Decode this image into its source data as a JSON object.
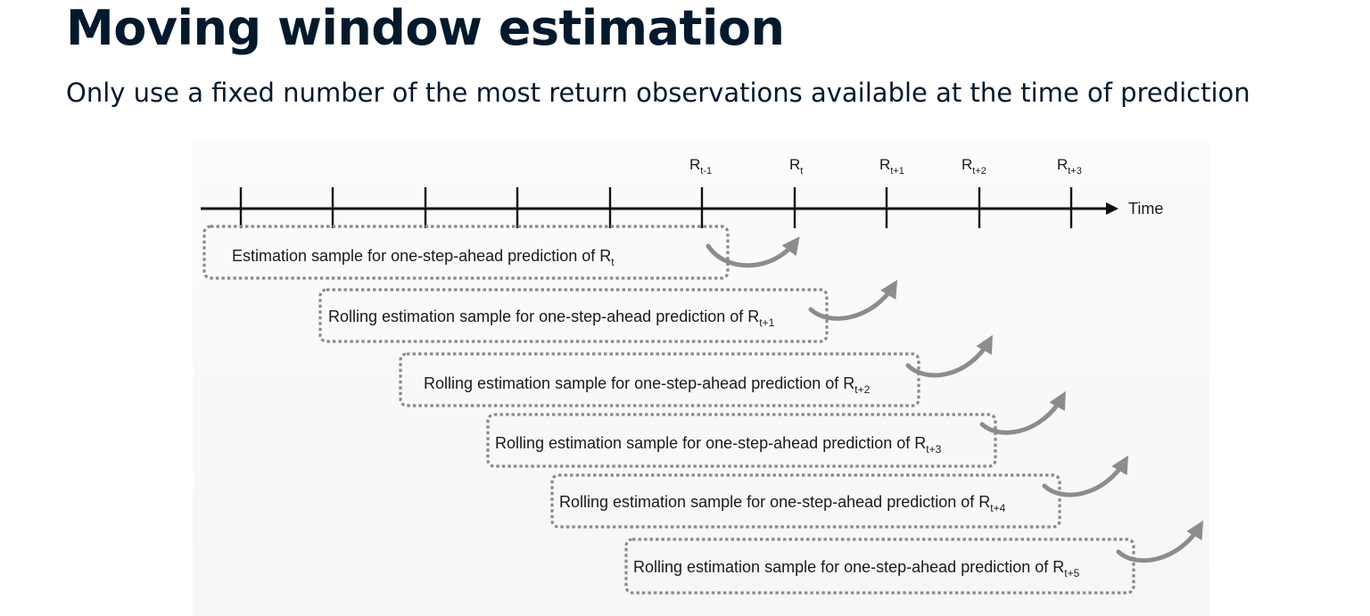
{
  "title": "Moving window estimation",
  "subtitle": "Only use a fixed number of the most return observations available at the time of prediction",
  "diagram": {
    "axis_label": "Time",
    "tick_labels": [
      {
        "base": "R",
        "sub": "t-1"
      },
      {
        "base": "R",
        "sub": "t"
      },
      {
        "base": "R",
        "sub": "t+1"
      },
      {
        "base": "R",
        "sub": "t+2"
      },
      {
        "base": "R",
        "sub": "t+3"
      }
    ],
    "windows": [
      {
        "text": "Estimation sample for one-step-ahead prediction of R",
        "sub": "t"
      },
      {
        "text": "Rolling estimation sample for one-step-ahead prediction of R",
        "sub": "t+1"
      },
      {
        "text": "Rolling estimation sample for one-step-ahead prediction of R",
        "sub": "t+2"
      },
      {
        "text": "Rolling estimation sample for one-step-ahead prediction of R",
        "sub": "t+3"
      },
      {
        "text": "Rolling estimation sample for one-step-ahead prediction of R",
        "sub": "t+4"
      },
      {
        "text": "Rolling estimation sample for one-step-ahead prediction of R",
        "sub": "t+5"
      }
    ],
    "colors": {
      "axis": "#111111",
      "box_border": "#8a8a8a",
      "arrow": "#8c8c8c",
      "title": "#05192d"
    }
  }
}
